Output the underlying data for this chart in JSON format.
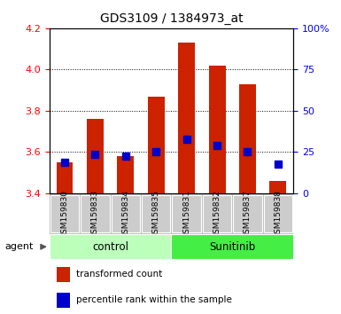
{
  "title": "GDS3109 / 1384973_at",
  "categories": [
    "GSM159830",
    "GSM159833",
    "GSM159834",
    "GSM159835",
    "GSM159831",
    "GSM159832",
    "GSM159837",
    "GSM159838"
  ],
  "red_values": [
    3.55,
    3.76,
    3.58,
    3.87,
    4.13,
    4.02,
    3.93,
    3.46
  ],
  "blue_values": [
    3.55,
    3.59,
    3.58,
    3.6,
    3.66,
    3.63,
    3.6,
    3.54
  ],
  "ymin": 3.4,
  "ymax": 4.2,
  "y2min": 0,
  "y2max": 100,
  "yticks": [
    3.4,
    3.6,
    3.8,
    4.0,
    4.2
  ],
  "y2ticks": [
    0,
    25,
    50,
    75,
    100
  ],
  "bar_color": "#CC2200",
  "marker_color": "#0000CC",
  "group_colors": [
    "#BBFFBB",
    "#44EE44"
  ],
  "group_labels": [
    "control",
    "Sunitinib"
  ],
  "agent_label": "agent",
  "legend_items": [
    "transformed count",
    "percentile rank within the sample"
  ],
  "bar_width": 0.55,
  "marker_size": 6
}
